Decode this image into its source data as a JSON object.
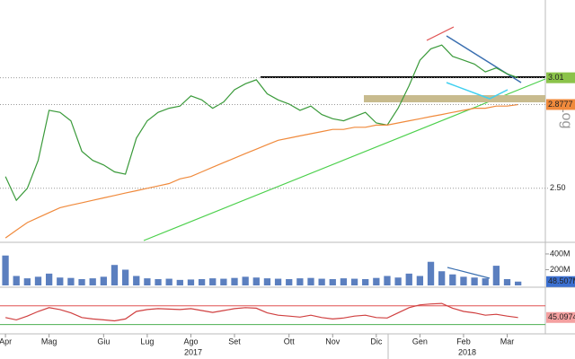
{
  "chart_data": [
    {
      "type": "line",
      "log": true,
      "grid": true,
      "scale_label": "Log",
      "ylim": [
        2.29,
        3.43
      ],
      "yticks": [
        {
          "value": 2.5,
          "label": "2.50"
        }
      ],
      "series": [
        {
          "color": "#3a9a3a",
          "tag": 3.01,
          "tag_color": "#8bc34a",
          "values": [
            2.55,
            2.45,
            2.5,
            2.62,
            2.85,
            2.84,
            2.8,
            2.66,
            2.62,
            2.6,
            2.57,
            2.56,
            2.72,
            2.8,
            2.84,
            2.86,
            2.87,
            2.92,
            2.9,
            2.86,
            2.89,
            2.95,
            2.98,
            3.0,
            2.93,
            2.9,
            2.88,
            2.85,
            2.87,
            2.83,
            2.81,
            2.8,
            2.82,
            2.84,
            2.79,
            2.78,
            2.86,
            2.97,
            3.1,
            3.16,
            3.18,
            3.12,
            3.1,
            3.08,
            3.04,
            3.06,
            3.03,
            3.01,
            null,
            null
          ]
        },
        {
          "color": "#f08a3c",
          "tag": 2.8777,
          "tag_color": "#f08a3c",
          "values": [
            2.3,
            2.33,
            2.36,
            2.38,
            2.4,
            2.42,
            2.43,
            2.44,
            2.45,
            2.46,
            2.47,
            2.48,
            2.49,
            2.5,
            2.51,
            2.52,
            2.54,
            2.55,
            2.57,
            2.59,
            2.61,
            2.63,
            2.65,
            2.67,
            2.69,
            2.71,
            2.72,
            2.73,
            2.74,
            2.75,
            2.76,
            2.76,
            2.77,
            2.77,
            2.78,
            2.78,
            2.79,
            2.8,
            2.81,
            2.82,
            2.83,
            2.84,
            2.85,
            2.86,
            2.86,
            2.87,
            2.87,
            2.8777,
            null,
            null
          ]
        }
      ]
    },
    {
      "type": "bar",
      "ylim": [
        0,
        525
      ],
      "color": "#5b7fbf",
      "yticks": [
        {
          "value": 200,
          "label": "200M"
        },
        {
          "value": 400,
          "label": "400M"
        }
      ],
      "tag": {
        "value": 48.507,
        "label": "48.507M"
      },
      "tag_color": "#3b6fd0",
      "values": [
        380,
        120,
        90,
        110,
        150,
        100,
        95,
        80,
        90,
        110,
        260,
        200,
        120,
        90,
        80,
        85,
        70,
        75,
        80,
        90,
        85,
        95,
        110,
        100,
        90,
        85,
        80,
        90,
        95,
        85,
        80,
        90,
        85,
        80,
        95,
        120,
        100,
        150,
        120,
        300,
        180,
        140,
        110,
        100,
        90,
        250,
        80,
        48.507,
        null,
        null
      ]
    },
    {
      "type": "line",
      "ylim": [
        14,
        104
      ],
      "levels": [
        {
          "value": 70,
          "color": "#e05050"
        },
        {
          "value": 30,
          "color": "#4caf50"
        }
      ],
      "series": [
        {
          "color": "#d04040",
          "tag": 45.0974,
          "tag_color": "#f4a0a0",
          "values": [
            45,
            40,
            48,
            58,
            66,
            62,
            55,
            45,
            42,
            40,
            38,
            42,
            58,
            62,
            64,
            63,
            62,
            64,
            60,
            56,
            60,
            64,
            66,
            65,
            55,
            50,
            48,
            46,
            50,
            45,
            42,
            44,
            48,
            50,
            45,
            44,
            55,
            66,
            72,
            74,
            75,
            65,
            58,
            55,
            50,
            52,
            48,
            45.0974,
            null,
            null
          ]
        }
      ],
      "categories": [
        "Apr",
        null,
        null,
        null,
        "Mag",
        null,
        null,
        null,
        null,
        "Giu",
        null,
        null,
        null,
        "Lug",
        null,
        null,
        null,
        "Ago",
        null,
        null,
        null,
        "Set",
        null,
        null,
        null,
        null,
        "Ott",
        null,
        null,
        null,
        "Nov",
        null,
        null,
        null,
        "Dic",
        null,
        null,
        null,
        "Gen",
        null,
        null,
        null,
        "Feb",
        null,
        null,
        null,
        "Mar",
        null,
        null,
        null
      ],
      "years": [
        "2017",
        "2018"
      ]
    }
  ]
}
